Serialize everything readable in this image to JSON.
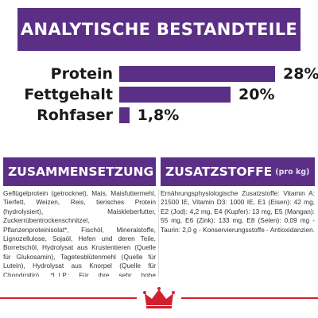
{
  "header": {
    "title": "ANALYTISCHE BESTANDTEILE"
  },
  "nutrients": [
    {
      "label": "Protein",
      "value_text": "28%",
      "percent": 28
    },
    {
      "label": "Fettgehalt",
      "value_text": "20%",
      "percent": 20
    },
    {
      "label": "Rohfaser",
      "value_text": "1,8%",
      "percent": 1.8
    }
  ],
  "composition": {
    "title": "ZUSAMMENSETZUNG",
    "text": "Geflügelprotein (getrocknet), Mais, Maisfuttermehl, Tierfett, Weizen, Reis, tierisches Protein (hydrolysiert), Maiskleberfutter, Zuckerrübentrockenschnitzel, Pflanzenproteinisolat*, Fischöl, Mineralstoffe, Lignozellulose, Sojaöl, Hefen und deren Teile, Borretschöl, Hydrolysat aus Krustentieren (Quelle für Glukosamin), Tagetesblütenmehl (Quelle für Lutein), Hydrolysat aus Knorpel (Quelle für Chondroitin). *L.I.P.: Für ihre sehr hohe Verdaulichkeit ausgewählte Proteine"
  },
  "additives": {
    "title": "ZUSATZSTOFFE",
    "suffix": "(pro kg)",
    "text": "Ernährungsphysiologische Zusatzstoffe: Vitamin A: 21500 IE, Vitamin D3: 1000 IE, E1 (Eisen): 42 mg, E2 (Jod): 4,2 mg, E4 (Kupfer): 13 mg, E5 (Mangan): 55 mg, E6 (Zink): 133 mg, E8 (Selen): 0,09 mg - Taurin: 2,0 g - Konservierungsstoffe - Antioxidanzien."
  },
  "colors": {
    "brand_purple": "#5b2f86",
    "brand_red": "#d21f2f"
  },
  "footer": {
    "logo_icon": "crown-icon"
  }
}
